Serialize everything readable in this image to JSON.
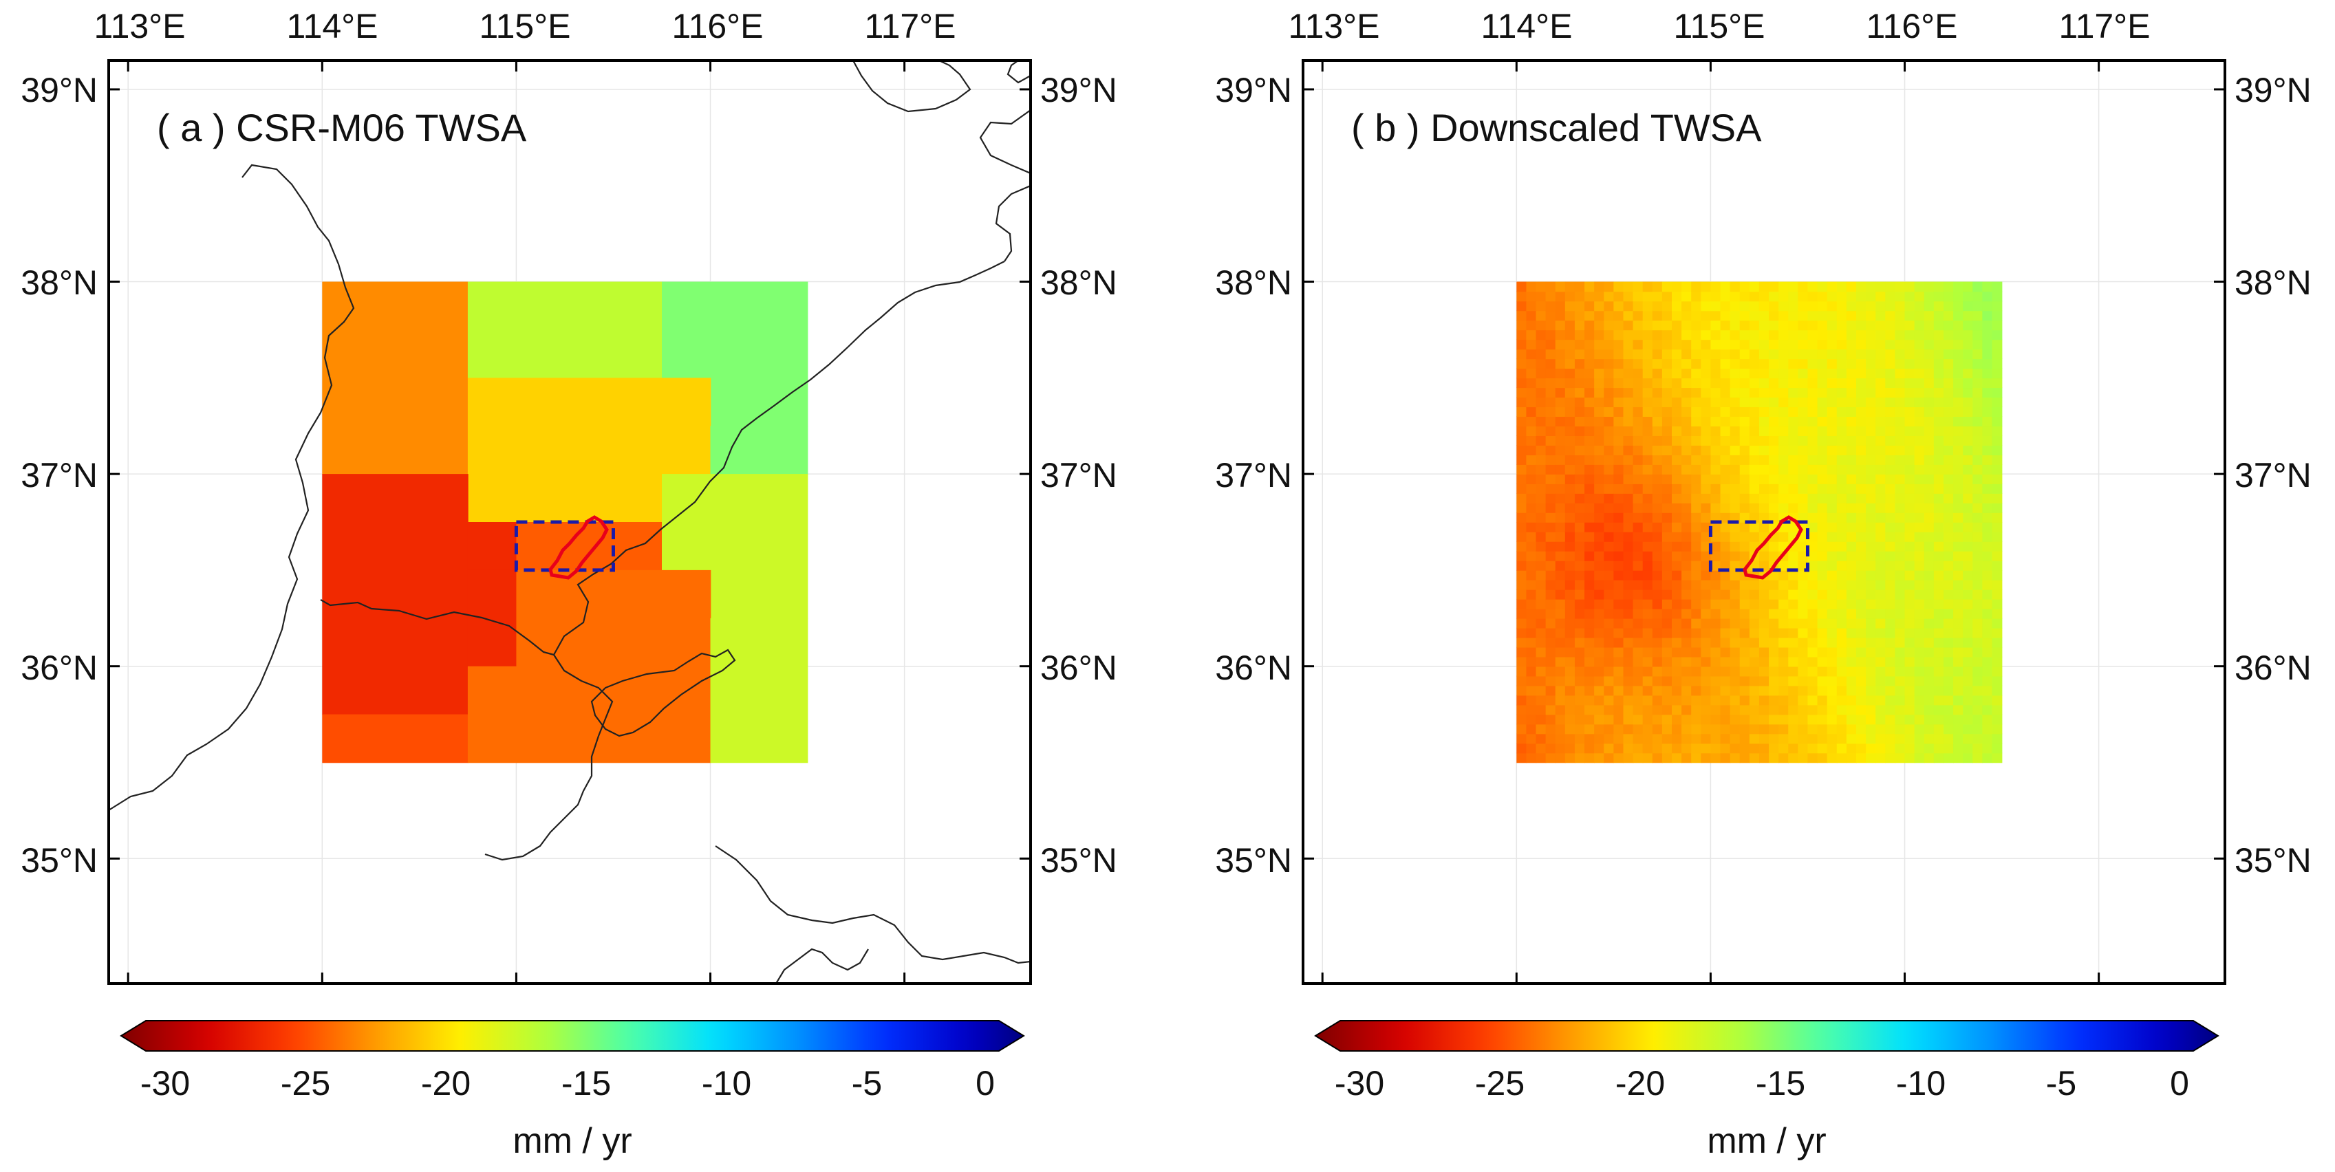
{
  "chart_data": [
    {
      "type": "heatmap",
      "panel_id": "a",
      "title": "( a ) CSR-M06 TWSA",
      "lon_ticks": [
        "113°E",
        "114°E",
        "115°E",
        "116°E",
        "117°E"
      ],
      "lat_ticks": [
        "39°N",
        "38°N",
        "37°N",
        "36°N",
        "35°N"
      ],
      "xlim": [
        112.9,
        117.65
      ],
      "ylim": [
        34.35,
        39.15
      ],
      "colorbar": {
        "ticks": [
          "-30",
          "-25",
          "-20",
          "-15",
          "-10",
          "-5",
          "0"
        ],
        "range": [
          -32,
          0
        ],
        "label": "mm / yr"
      },
      "cells": [
        {
          "lon0": 114.0,
          "lon1": 114.75,
          "lat0": 37.0,
          "lat1": 38.0,
          "value": -23.5
        },
        {
          "lon0": 114.75,
          "lon1": 115.75,
          "lat0": 37.5,
          "lat1": 38.0,
          "value": -17.5
        },
        {
          "lon0": 115.75,
          "lon1": 116.5,
          "lat0": 37.25,
          "lat1": 38.0,
          "value": -15.5
        },
        {
          "lon0": 114.75,
          "lon1": 116.0,
          "lat0": 36.75,
          "lat1": 37.5,
          "value": -21.0
        },
        {
          "lon0": 116.0,
          "lon1": 116.5,
          "lat0": 37.0,
          "lat1": 37.25,
          "value": -15.5
        },
        {
          "lon0": 114.0,
          "lon1": 114.75,
          "lat0": 36.0,
          "lat1": 37.0,
          "value": -27.0
        },
        {
          "lon0": 114.75,
          "lon1": 115.0,
          "lat0": 36.5,
          "lat1": 36.75,
          "value": -27.0
        },
        {
          "lon0": 115.0,
          "lon1": 115.75,
          "lat0": 36.5,
          "lat1": 36.75,
          "value": -25.0
        },
        {
          "lon0": 115.75,
          "lon1": 116.5,
          "lat0": 36.25,
          "lat1": 37.0,
          "value": -18.0
        },
        {
          "lon0": 114.75,
          "lon1": 115.0,
          "lat0": 36.0,
          "lat1": 36.5,
          "value": -27.0
        },
        {
          "lon0": 115.0,
          "lon1": 116.0,
          "lat0": 35.5,
          "lat1": 36.5,
          "value": -24.5
        },
        {
          "lon0": 116.0,
          "lon1": 116.5,
          "lat0": 35.5,
          "lat1": 36.25,
          "value": -18.0
        },
        {
          "lon0": 114.0,
          "lon1": 114.75,
          "lat0": 35.75,
          "lat1": 36.0,
          "value": -27.0
        },
        {
          "lon0": 114.0,
          "lon1": 114.75,
          "lat0": 35.5,
          "lat1": 35.75,
          "value": -25.5
        },
        {
          "lon0": 114.75,
          "lon1": 115.0,
          "lat0": 35.5,
          "lat1": 36.0,
          "value": -24.5
        }
      ]
    },
    {
      "type": "heatmap",
      "panel_id": "b",
      "title": "( b ) Downscaled TWSA",
      "lon_ticks": [
        "113°E",
        "114°E",
        "115°E",
        "116°E",
        "117°E"
      ],
      "lat_ticks": [
        "39°N",
        "38°N",
        "37°N",
        "36°N",
        "35°N"
      ],
      "xlim": [
        112.9,
        117.65
      ],
      "ylim": [
        34.35,
        39.15
      ],
      "colorbar": {
        "ticks": [
          "-30",
          "-25",
          "-20",
          "-15",
          "-10",
          "-5",
          "0"
        ],
        "range": [
          -32,
          0
        ],
        "label": "mm / yr"
      },
      "grid_extent": {
        "lon": [
          114.0,
          116.5
        ],
        "lat": [
          35.5,
          38.0
        ]
      },
      "grid_resolution_deg": 0.05,
      "value_range": [
        -26.5,
        -15.5
      ]
    }
  ],
  "study_area_box": {
    "lon": [
      115.0,
      115.5
    ],
    "lat": [
      36.5,
      36.75
    ]
  },
  "colors": {
    "study_outline": "#e8001a",
    "box_dash": "#1a1aaa",
    "boundary": "#222222",
    "frame": "#000000"
  }
}
